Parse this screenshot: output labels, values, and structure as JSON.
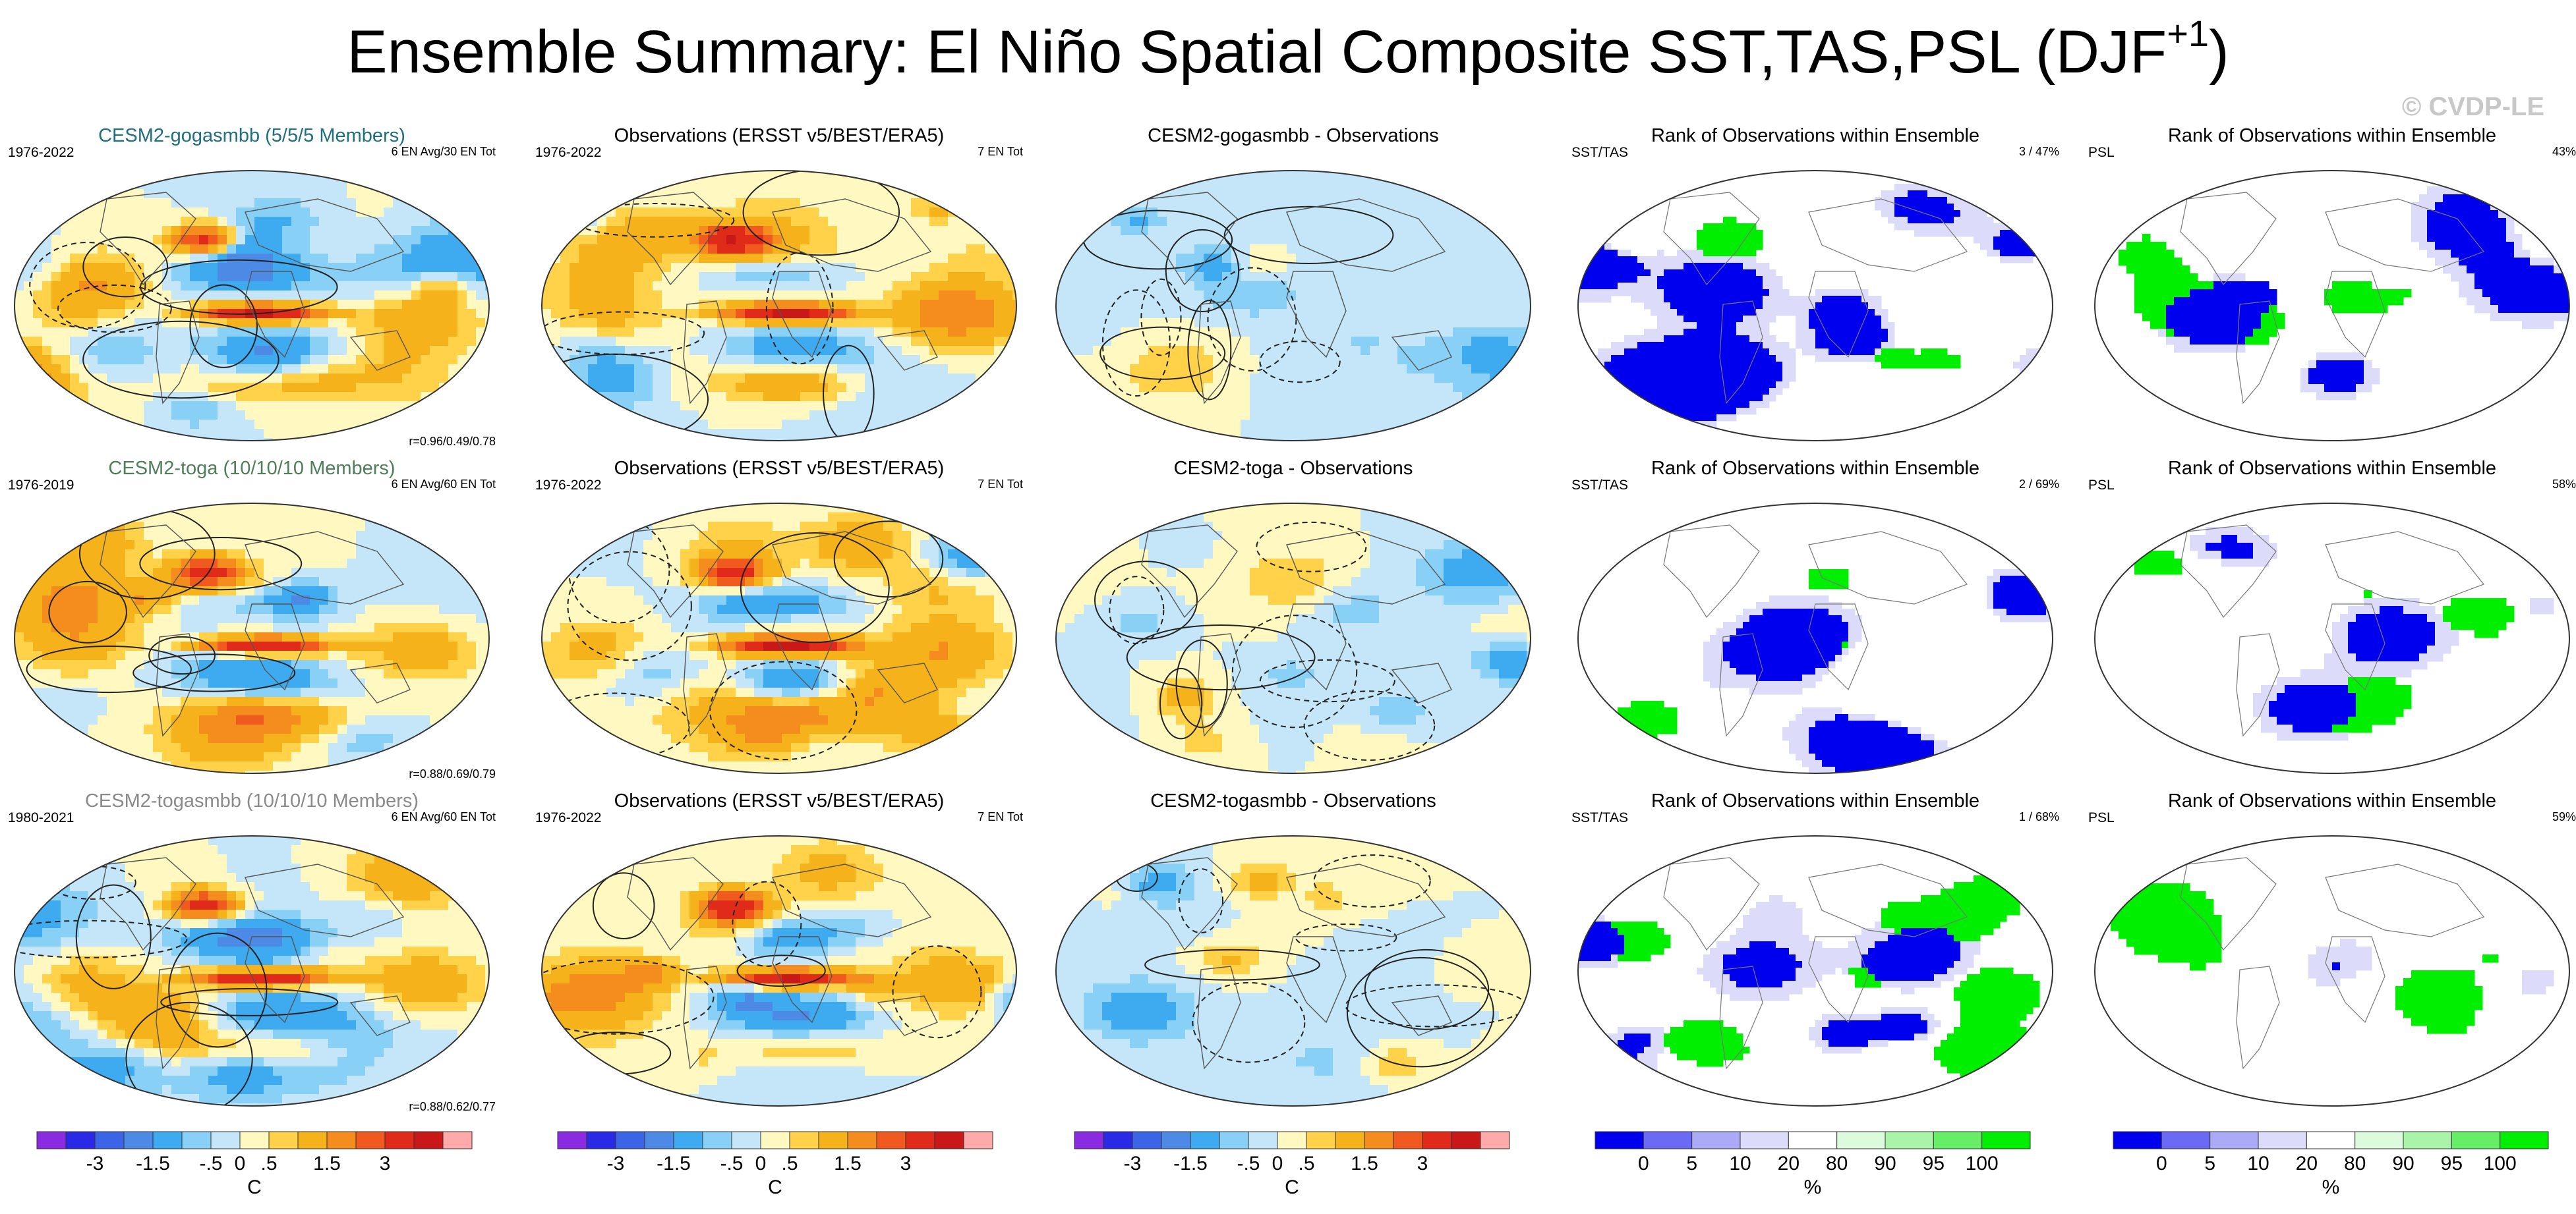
{
  "figure": {
    "title": "Ensemble Summary: El Niño Spatial Composite SST,TAS,PSL (DJF",
    "title_sup": "+1",
    "title_end": ")",
    "watermark": "© CVDP-LE"
  },
  "rows": [
    {
      "panels": [
        {
          "title": "CESM2-gogasmbb (5/5/5 Members)",
          "left": "1976-2022",
          "right": "6 EN Avg/30 EN Tot",
          "corr": "r=0.96/0.49/0.78"
        },
        {
          "title": "Observations (ERSST v5/BEST/ERA5)",
          "left": "1976-2022",
          "right": "7 EN Tot"
        },
        {
          "title": "CESM2-gogasmbb - Observations"
        },
        {
          "title": "Rank of Observations within Ensemble",
          "left": "SST/TAS",
          "right": "3 /  47%"
        },
        {
          "title": "Rank of Observations within Ensemble",
          "left": "PSL",
          "right": "43%"
        }
      ]
    },
    {
      "panels": [
        {
          "title": "CESM2-toga (10/10/10 Members)",
          "left": "1976-2019",
          "right": "6 EN Avg/60 EN Tot",
          "corr": "r=0.88/0.69/0.79"
        },
        {
          "title": "Observations (ERSST v5/BEST/ERA5)",
          "left": "1976-2022",
          "right": "7 EN Tot"
        },
        {
          "title": "CESM2-toga - Observations"
        },
        {
          "title": "Rank of Observations within Ensemble",
          "left": "SST/TAS",
          "right": "2 /  69%"
        },
        {
          "title": "Rank of Observations within Ensemble",
          "left": "PSL",
          "right": "58%"
        }
      ]
    },
    {
      "panels": [
        {
          "title": "CESM2-togasmbb (10/10/10 Members)",
          "left": "1980-2021",
          "right": "6 EN Avg/60 EN Tot",
          "corr": "r=0.88/0.62/0.77"
        },
        {
          "title": "Observations (ERSST v5/BEST/ERA5)",
          "left": "1976-2022",
          "right": "7 EN Tot"
        },
        {
          "title": "CESM2-togasmbb - Observations"
        },
        {
          "title": "Rank of Observations within Ensemble",
          "left": "SST/TAS",
          "right": "1 /  68%"
        },
        {
          "title": "Rank of Observations within Ensemble",
          "left": "PSL",
          "right": "59%"
        }
      ]
    }
  ],
  "chart_data": {
    "type": "heatmap",
    "projection": "robinson",
    "composite_colorbar": {
      "label": "C",
      "ticks": [
        "-3",
        "-1.5",
        "-.5",
        "0",
        ".5",
        "1.5",
        "3"
      ],
      "colors": [
        "#8a2be2",
        "#2a2ae6",
        "#3c64e6",
        "#4c8ae6",
        "#3eaaf0",
        "#88d0f6",
        "#c4e6f8",
        "#fff8c0",
        "#ffd24a",
        "#f6b21a",
        "#f58c1e",
        "#f05a1e",
        "#e02a1a",
        "#c81818",
        "#ffaaaa"
      ]
    },
    "rank_colorbar": {
      "label": "%",
      "ticks": [
        "0",
        "5",
        "10",
        "20",
        "80",
        "90",
        "95",
        "100"
      ],
      "colors": [
        "#0000ee",
        "#6a6af4",
        "#aaaaf6",
        "#dcdcfa",
        "#ffffff",
        "#dcfadc",
        "#aaf4aa",
        "#66ee66",
        "#00ee00"
      ]
    }
  }
}
